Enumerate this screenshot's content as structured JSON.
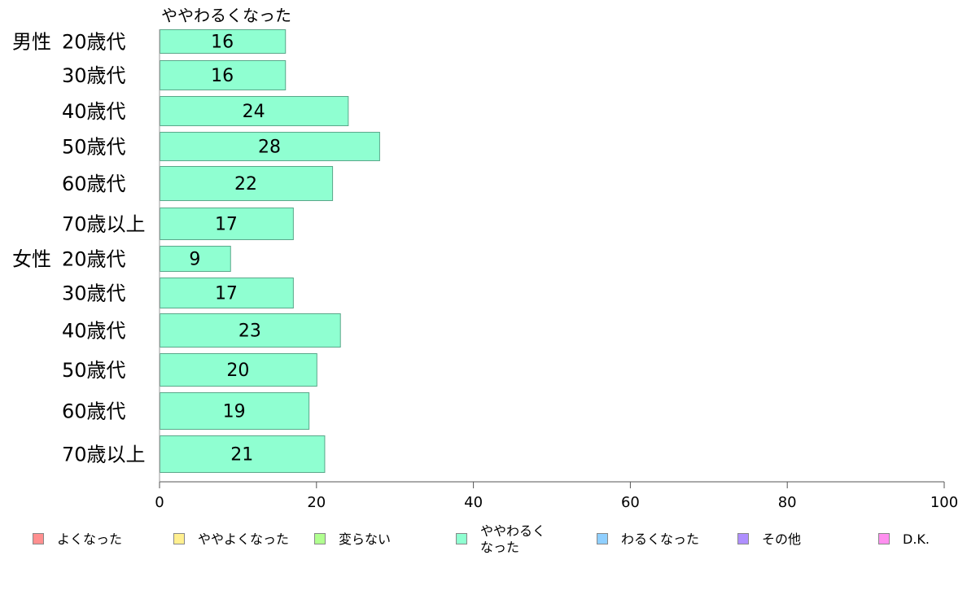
{
  "chart_data": {
    "type": "bar",
    "orientation": "horizontal",
    "series_title": "ややわるくなった",
    "groups": [
      {
        "label": "男性",
        "start_index": 0
      },
      {
        "label": "女性",
        "start_index": 6
      }
    ],
    "categories": [
      "20歳代",
      "30歳代",
      "40歳代",
      "50歳代",
      "60歳代",
      "70歳以上",
      "20歳代",
      "30歳代",
      "40歳代",
      "50歳代",
      "60歳代",
      "70歳以上"
    ],
    "series": [
      {
        "name": "ややわるくなった",
        "color": "#8fffd1",
        "values": [
          16,
          16,
          24,
          28,
          22,
          17,
          9,
          17,
          23,
          20,
          19,
          21
        ]
      }
    ],
    "xlim": [
      0,
      100
    ],
    "xticks": [
      0,
      20,
      40,
      60,
      80,
      100
    ],
    "grid": false,
    "legend_position": "bottom",
    "legend": [
      {
        "label": "よくなった",
        "color": "#ff8f8f"
      },
      {
        "label": "ややよくなった",
        "color": "#ffef8f"
      },
      {
        "label": "変らない",
        "color": "#b0ff8f"
      },
      {
        "label": "ややわるく\nなった",
        "color": "#8fffd1"
      },
      {
        "label": "わるくなった",
        "color": "#8fcfff"
      },
      {
        "label": "その他",
        "color": "#af8fff"
      },
      {
        "label": "D.K.",
        "color": "#ff8fef"
      }
    ]
  }
}
